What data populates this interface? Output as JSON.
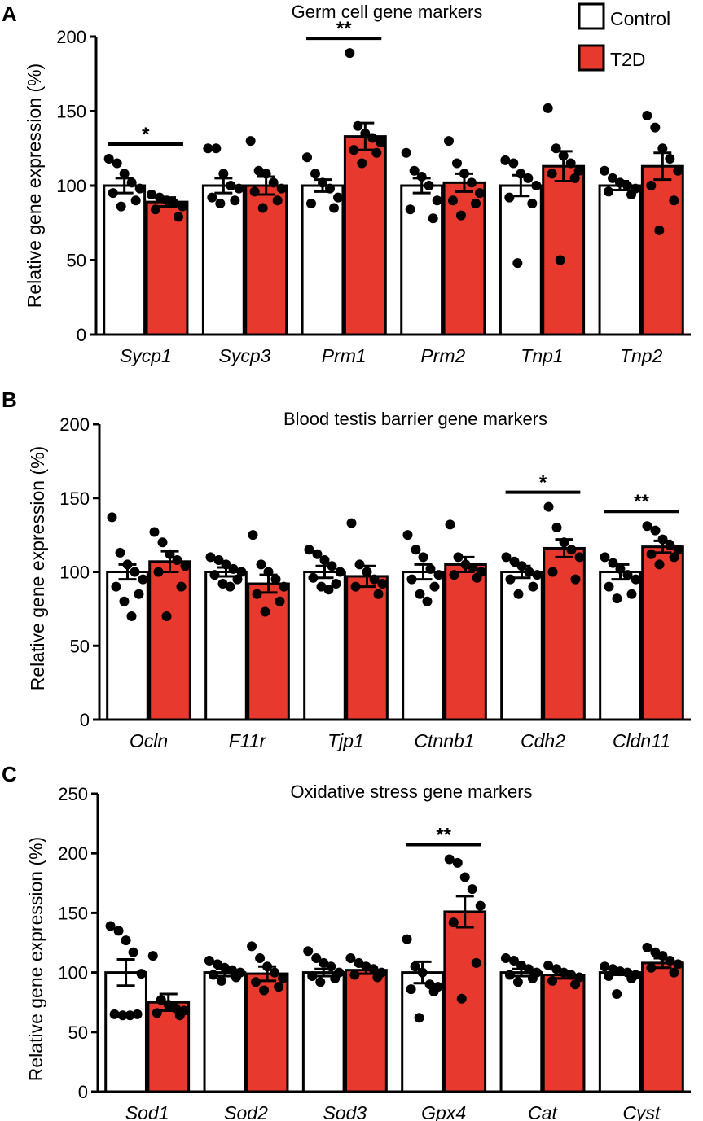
{
  "legend": [
    {
      "label": "Control",
      "color": "#ffffff"
    },
    {
      "label": "T2D",
      "color": "#e8392e"
    }
  ],
  "colors": {
    "control": "#ffffff",
    "t2d": "#e8392e",
    "outline": "#000000",
    "points": "#000000"
  },
  "chart_data": [
    {
      "type": "bar",
      "panel": "A",
      "title": "Germ cell gene markers",
      "ylabel": "Relative gene expression (%)",
      "xlabel": "",
      "ylim": [
        0,
        200
      ],
      "yticks": [
        0,
        50,
        100,
        150,
        200
      ],
      "categories": [
        "Sycp1",
        "Sycp3",
        "Prm1",
        "Prm2",
        "Tnp1",
        "Tnp2"
      ],
      "series": [
        {
          "name": "Control",
          "values": [
            100,
            100,
            100,
            100,
            100,
            100
          ],
          "sem": [
            5,
            5,
            4,
            5,
            7,
            3
          ],
          "points": [
            [
              118,
              115,
              108,
              102,
              98,
              95,
              90,
              86
            ],
            [
              125,
              125,
              108,
              100,
              98,
              92,
              90,
              88
            ],
            [
              119,
              108,
              102,
              98,
              92,
              88,
              85
            ],
            [
              122,
              110,
              106,
              100,
              90,
              84,
              78
            ],
            [
              117,
              115,
              108,
              105,
              100,
              92,
              88,
              48
            ],
            [
              110,
              105,
              102,
              100,
              98,
              96,
              94
            ]
          ]
        },
        {
          "name": "T2D",
          "values": [
            89,
            100,
            133,
            102,
            113,
            113
          ],
          "sem": [
            3,
            6,
            9,
            6,
            10,
            9
          ],
          "points": [
            [
              94,
              92,
              90,
              88,
              86,
              84,
              79
            ],
            [
              130,
              110,
              108,
              102,
              98,
              96,
              90,
              85
            ],
            [
              189,
              140,
              135,
              132,
              129,
              124,
              122,
              115
            ],
            [
              130,
              115,
              108,
              102,
              95,
              90,
              88,
              80
            ],
            [
              152,
              125,
              120,
              115,
              110,
              108,
              105,
              50
            ],
            [
              147,
              139,
              125,
              118,
              110,
              100,
              90,
              70
            ]
          ]
        }
      ],
      "significance": [
        {
          "category": "Sycp1",
          "label": "*"
        },
        {
          "category": "Prm1",
          "label": "**"
        }
      ]
    },
    {
      "type": "bar",
      "panel": "B",
      "title": "Blood testis barrier gene markers",
      "ylabel": "Relative gene expression (%)",
      "xlabel": "",
      "ylim": [
        0,
        200
      ],
      "yticks": [
        0,
        50,
        100,
        150,
        200
      ],
      "categories": [
        "Ocln",
        "F11r",
        "Tjp1",
        "Ctnnb1",
        "Cdh2",
        "Cldn11"
      ],
      "series": [
        {
          "name": "Control",
          "values": [
            100,
            100,
            100,
            100,
            100,
            100
          ],
          "sem": [
            5,
            3,
            4,
            5,
            4,
            5
          ],
          "points": [
            [
              137,
              113,
              105,
              100,
              95,
              90,
              85,
              80,
              70
            ],
            [
              110,
              108,
              105,
              102,
              100,
              98,
              95,
              92,
              90
            ],
            [
              115,
              112,
              108,
              104,
              100,
              96,
              92,
              90,
              88
            ],
            [
              125,
              115,
              110,
              102,
              98,
              95,
              90,
              85,
              80
            ],
            [
              110,
              107,
              104,
              100,
              98,
              95,
              90,
              85
            ],
            [
              110,
              106,
              102,
              98,
              95,
              90,
              85,
              82
            ]
          ]
        },
        {
          "name": "T2D",
          "values": [
            107,
            92,
            97,
            105,
            116,
            117
          ],
          "sem": [
            7,
            6,
            7,
            5,
            6,
            4
          ],
          "points": [
            [
              127,
              120,
              112,
              108,
              104,
              100,
              90,
              70
            ],
            [
              125,
              105,
              100,
              95,
              90,
              85,
              80,
              73
            ],
            [
              133,
              105,
              100,
              95,
              92,
              90,
              85
            ],
            [
              132,
              110,
              105,
              103,
              100,
              98,
              96
            ],
            [
              144,
              130,
              120,
              115,
              110,
              100,
              95
            ],
            [
              131,
              128,
              122,
              118,
              115,
              112,
              110,
              105
            ]
          ]
        }
      ],
      "significance": [
        {
          "category": "Cdh2",
          "label": "*"
        },
        {
          "category": "Cldn11",
          "label": "**"
        }
      ]
    },
    {
      "type": "bar",
      "panel": "C",
      "title": "Oxidative stress gene markers",
      "ylabel": "Relative gene expression (%)",
      "xlabel": "",
      "ylim": [
        0,
        250
      ],
      "yticks": [
        0,
        50,
        100,
        150,
        200,
        250
      ],
      "categories": [
        "Sod1",
        "Sod2",
        "Sod3",
        "Gpx4",
        "Cat",
        "Cyst"
      ],
      "series": [
        {
          "name": "Control",
          "values": [
            100,
            100,
            100,
            100,
            100,
            100
          ],
          "sem": [
            11,
            3,
            3,
            9,
            3,
            2
          ],
          "points": [
            [
              139,
              135,
              127,
              117,
              99,
              65,
              65,
              64,
              64
            ],
            [
              110,
              107,
              104,
              102,
              100,
              98,
              96,
              93
            ],
            [
              118,
              112,
              108,
              105,
              100,
              97,
              95,
              92
            ],
            [
              128,
              105,
              100,
              90,
              88,
              86,
              84,
              62
            ],
            [
              112,
              110,
              106,
              103,
              100,
              98,
              95,
              92
            ],
            [
              105,
              103,
              101,
              100,
              98,
              97,
              95,
              82
            ]
          ]
        },
        {
          "name": "T2D",
          "values": [
            75,
            99,
            102,
            151,
            98,
            108
          ],
          "sem": [
            7,
            6,
            3,
            13,
            3,
            4
          ],
          "points": [
            [
              114,
              77,
              73,
              70,
              68,
              66,
              64
            ],
            [
              122,
              112,
              105,
              100,
              95,
              92,
              88,
              85
            ],
            [
              112,
              108,
              105,
              103,
              100,
              98,
              96
            ],
            [
              195,
              192,
              180,
              170,
              156,
              142,
              108,
              78
            ],
            [
              106,
              103,
              100,
              98,
              96,
              93,
              90
            ],
            [
              121,
              117,
              114,
              110,
              107,
              104,
              100
            ]
          ]
        }
      ],
      "significance": [
        {
          "category": "Gpx4",
          "label": "**"
        }
      ]
    }
  ]
}
